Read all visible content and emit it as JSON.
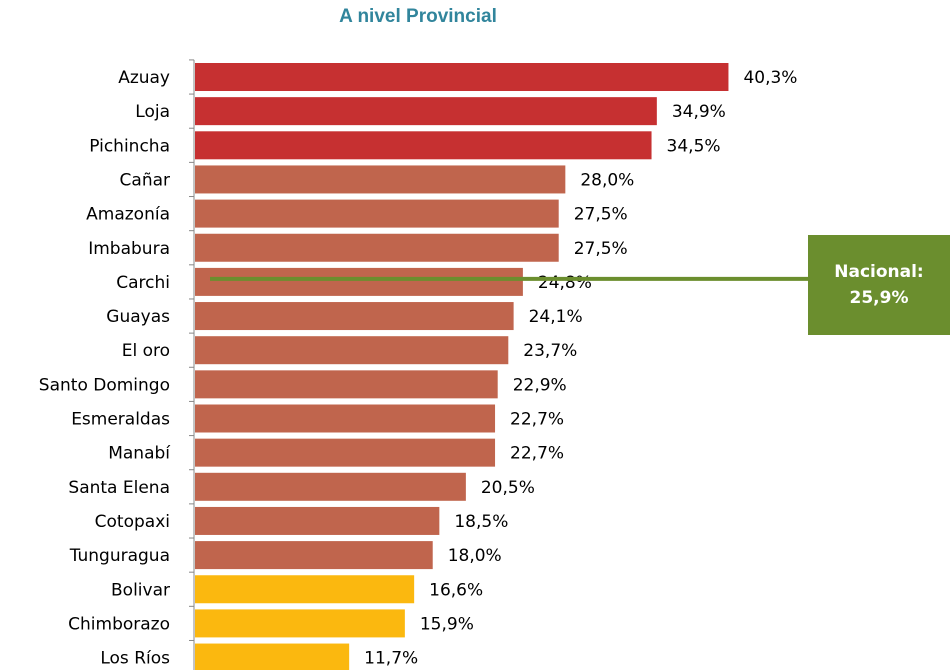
{
  "chart_data": {
    "type": "bar",
    "orientation": "horizontal",
    "title": "A nivel Provincial",
    "categories": [
      "Azuay",
      "Loja",
      "Pichincha",
      "Cañar",
      "Amazonía",
      "Imbabura",
      "Carchi",
      "Guayas",
      "El oro",
      "Santo Domingo",
      "Esmeraldas",
      "Manabí",
      "Santa Elena",
      "Cotopaxi",
      "Tunguragua",
      "Bolivar",
      "Chimborazo",
      "Los Ríos"
    ],
    "values": [
      40.3,
      34.9,
      34.5,
      28.0,
      27.5,
      27.5,
      24.8,
      24.1,
      23.7,
      22.9,
      22.7,
      22.7,
      20.5,
      18.5,
      18.0,
      16.6,
      15.9,
      11.7
    ],
    "value_labels": [
      "40,3%",
      "34,9%",
      "34,5%",
      "28,0%",
      "27,5%",
      "27,5%",
      "24,8%",
      "24,1%",
      "23,7%",
      "22,9%",
      "22,7%",
      "22,7%",
      "20,5%",
      "18,5%",
      "18,0%",
      "16,6%",
      "15,9%",
      "11,7%"
    ],
    "bar_colors": [
      "#c63031",
      "#c63031",
      "#c63031",
      "#c0654d",
      "#c0654d",
      "#c0654d",
      "#c0654d",
      "#c0654d",
      "#c0654d",
      "#c0654d",
      "#c0654d",
      "#c0654d",
      "#c0654d",
      "#c0654d",
      "#c0654d",
      "#fbb80f",
      "#fbb80f",
      "#fbb80f"
    ],
    "xlim": [
      0,
      42
    ],
    "grid": false,
    "reference_line": {
      "value": 25.9,
      "label_line1": "Nacional:",
      "label_line2": "25,9%",
      "color": "#6b8e2e"
    }
  }
}
